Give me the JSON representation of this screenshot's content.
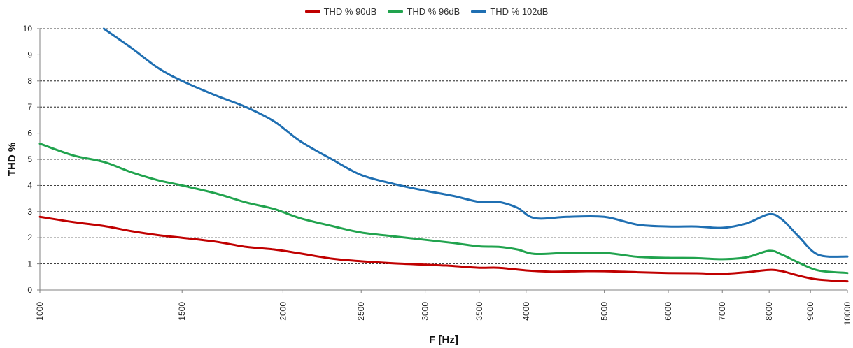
{
  "chart_data": {
    "type": "line",
    "x_scale": "log",
    "xlabel": "F [Hz]",
    "ylabel": "THD %",
    "xlim": [
      1000,
      10000
    ],
    "ylim": [
      0,
      10
    ],
    "grid": "horizontal-dashed",
    "legend_position": "top-center",
    "x_ticks": [
      1000,
      1500,
      2000,
      2500,
      3000,
      3500,
      4000,
      5000,
      6000,
      7000,
      8000,
      9000,
      10000
    ],
    "x_tick_labels": [
      "1000",
      "1500",
      "2000",
      "2500",
      "3000",
      "3500",
      "4000",
      "5000",
      "6000",
      "7000",
      "8000",
      "9000",
      "10000"
    ],
    "y_ticks": [
      0,
      1,
      2,
      3,
      4,
      5,
      6,
      7,
      8,
      9,
      10
    ],
    "y_tick_labels": [
      "0",
      "1",
      "2",
      "3",
      "4",
      "5",
      "6",
      "7",
      "8",
      "9",
      "10"
    ],
    "series": [
      {
        "name": "THD % 90dB",
        "color": "#c00000",
        "points": [
          [
            1000,
            2.8
          ],
          [
            1100,
            2.6
          ],
          [
            1200,
            2.45
          ],
          [
            1300,
            2.25
          ],
          [
            1400,
            2.1
          ],
          [
            1500,
            2.0
          ],
          [
            1650,
            1.85
          ],
          [
            1800,
            1.65
          ],
          [
            1950,
            1.55
          ],
          [
            2100,
            1.4
          ],
          [
            2300,
            1.2
          ],
          [
            2500,
            1.1
          ],
          [
            2750,
            1.02
          ],
          [
            3000,
            0.97
          ],
          [
            3250,
            0.92
          ],
          [
            3500,
            0.85
          ],
          [
            3700,
            0.85
          ],
          [
            4000,
            0.75
          ],
          [
            4300,
            0.7
          ],
          [
            4700,
            0.72
          ],
          [
            5000,
            0.72
          ],
          [
            5500,
            0.68
          ],
          [
            6000,
            0.65
          ],
          [
            6500,
            0.64
          ],
          [
            7000,
            0.62
          ],
          [
            7500,
            0.68
          ],
          [
            8000,
            0.77
          ],
          [
            8300,
            0.72
          ],
          [
            8700,
            0.55
          ],
          [
            9200,
            0.4
          ],
          [
            10000,
            0.33
          ]
        ]
      },
      {
        "name": "THD % 96dB",
        "color": "#21a34e",
        "points": [
          [
            1000,
            5.6
          ],
          [
            1100,
            5.15
          ],
          [
            1200,
            4.9
          ],
          [
            1300,
            4.5
          ],
          [
            1400,
            4.2
          ],
          [
            1500,
            4.0
          ],
          [
            1650,
            3.7
          ],
          [
            1800,
            3.35
          ],
          [
            1950,
            3.1
          ],
          [
            2100,
            2.75
          ],
          [
            2300,
            2.45
          ],
          [
            2500,
            2.2
          ],
          [
            2750,
            2.05
          ],
          [
            3000,
            1.92
          ],
          [
            3250,
            1.8
          ],
          [
            3500,
            1.67
          ],
          [
            3700,
            1.65
          ],
          [
            3900,
            1.55
          ],
          [
            4100,
            1.38
          ],
          [
            4500,
            1.42
          ],
          [
            5000,
            1.42
          ],
          [
            5500,
            1.27
          ],
          [
            6000,
            1.23
          ],
          [
            6500,
            1.22
          ],
          [
            7000,
            1.18
          ],
          [
            7500,
            1.25
          ],
          [
            8000,
            1.5
          ],
          [
            8300,
            1.35
          ],
          [
            8700,
            1.05
          ],
          [
            9200,
            0.75
          ],
          [
            10000,
            0.65
          ]
        ]
      },
      {
        "name": "THD % 102dB",
        "color": "#1f6fb2",
        "points": [
          [
            1200,
            10.0
          ],
          [
            1300,
            9.25
          ],
          [
            1400,
            8.5
          ],
          [
            1500,
            8.0
          ],
          [
            1650,
            7.45
          ],
          [
            1800,
            7.0
          ],
          [
            1950,
            6.45
          ],
          [
            2100,
            5.7
          ],
          [
            2300,
            5.0
          ],
          [
            2500,
            4.4
          ],
          [
            2750,
            4.05
          ],
          [
            3000,
            3.8
          ],
          [
            3250,
            3.6
          ],
          [
            3500,
            3.37
          ],
          [
            3700,
            3.37
          ],
          [
            3900,
            3.15
          ],
          [
            4100,
            2.75
          ],
          [
            4500,
            2.8
          ],
          [
            5000,
            2.8
          ],
          [
            5500,
            2.5
          ],
          [
            6000,
            2.43
          ],
          [
            6500,
            2.43
          ],
          [
            7000,
            2.38
          ],
          [
            7500,
            2.55
          ],
          [
            8000,
            2.9
          ],
          [
            8300,
            2.7
          ],
          [
            8700,
            2.05
          ],
          [
            9200,
            1.35
          ],
          [
            10000,
            1.28
          ]
        ]
      }
    ]
  }
}
